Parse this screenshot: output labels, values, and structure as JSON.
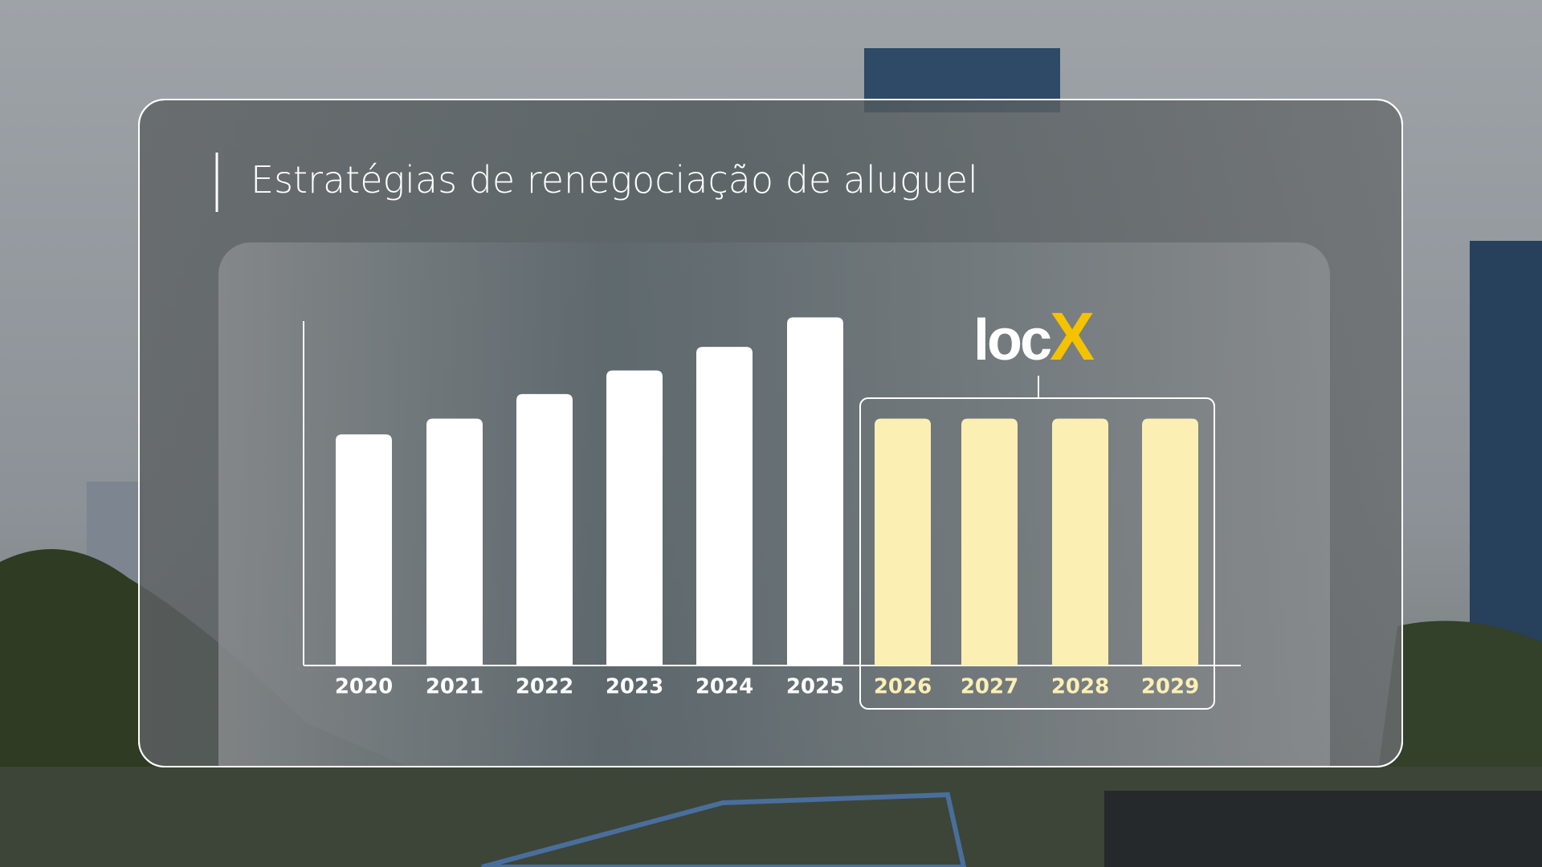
{
  "chart_data": {
    "type": "bar",
    "title": "Estratégias de renegociação de aluguel",
    "logo_parts": [
      "loc",
      "X"
    ],
    "categories": [
      "2020",
      "2021",
      "2022",
      "2023",
      "2024",
      "2025",
      "2026",
      "2027",
      "2028",
      "2029"
    ],
    "series": [
      {
        "color": "#ffffff",
        "values": [
          235,
          251,
          276,
          300,
          324,
          354,
          null,
          null,
          null,
          null
        ]
      },
      {
        "color": "#fcefb4",
        "label_color": "#fcefb4",
        "values": [
          null,
          null,
          null,
          null,
          null,
          null,
          251,
          251,
          251,
          251
        ]
      }
    ],
    "ylim": [
      0,
      360
    ],
    "grid": false
  }
}
